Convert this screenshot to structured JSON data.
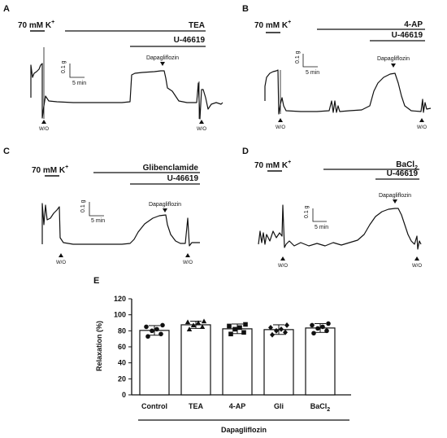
{
  "panels": [
    {
      "letter": "A",
      "k_label": "70 mM K",
      "k_sup": "+",
      "blocker": "TEA",
      "agonist": "U-46619",
      "drug": "Dapagliflozin",
      "scale_y": "0.1 g",
      "scale_x": "5 min",
      "washout": "W/O"
    },
    {
      "letter": "B",
      "k_label": "70 mM K",
      "k_sup": "+",
      "blocker": "4-AP",
      "agonist": "U-46619",
      "drug": "Dapagliflozin",
      "scale_y": "0.1 g",
      "scale_x": "5 min",
      "washout": "W/O"
    },
    {
      "letter": "C",
      "k_label": "70 mM K",
      "k_sup": "+",
      "blocker": "Glibenclamide",
      "agonist": "U-46619",
      "drug": "Dapagliflozin",
      "scale_y": "0.1 g",
      "scale_x": "5 min",
      "washout": "W/O"
    },
    {
      "letter": "D",
      "k_label": "70 mM K",
      "k_sup": "+",
      "blocker": "BaCl",
      "blocker_sub": "2",
      "agonist": "U-46619",
      "drug": "Dapagliflozin",
      "scale_y": "0.1 g",
      "scale_x": "5 min",
      "washout": "W/O"
    }
  ],
  "chart_data": {
    "type": "bar",
    "panel_letter": "E",
    "categories": [
      "Control",
      "TEA",
      "4-AP",
      "Gli",
      "BaCl2"
    ],
    "category_display": [
      {
        "main": "Control",
        "sub": ""
      },
      {
        "main": "TEA",
        "sub": ""
      },
      {
        "main": "4-AP",
        "sub": ""
      },
      {
        "main": "Gli",
        "sub": ""
      },
      {
        "main": "BaCl",
        "sub": "2"
      }
    ],
    "values": [
      80.5,
      87.5,
      82.5,
      81.5,
      83.5
    ],
    "errors": [
      6.0,
      4.5,
      6.0,
      6.0,
      5.5
    ],
    "points": [
      [
        73,
        76,
        80,
        82,
        85,
        87
      ],
      [
        82,
        85,
        87,
        90,
        91,
        92
      ],
      [
        76,
        78,
        82,
        84,
        86,
        88
      ],
      [
        75,
        78,
        80,
        82,
        84,
        87
      ],
      [
        77,
        80,
        83,
        85,
        87,
        89
      ]
    ],
    "markers": [
      "circle",
      "triangle",
      "square",
      "diamond",
      "circle"
    ],
    "ylabel": "Relaxation (%)",
    "xlabel": "",
    "group_label": "Dapagliflozin",
    "ylim": [
      0,
      120
    ],
    "yticks": [
      0,
      20,
      40,
      60,
      80,
      100,
      120
    ],
    "grid": false
  }
}
